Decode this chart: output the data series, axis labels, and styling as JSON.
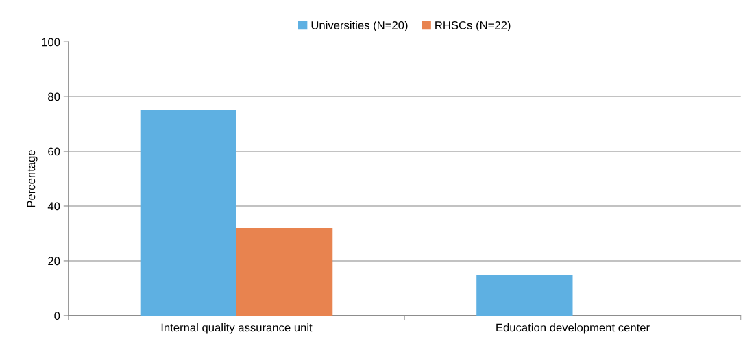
{
  "chart_data": {
    "type": "bar",
    "ylabel": "Percentage",
    "categories": [
      "Internal quality assurance unit",
      "Education development center"
    ],
    "series": [
      {
        "name": "Universities (N=20)",
        "color": "#5eb0e2",
        "values": [
          75,
          15
        ]
      },
      {
        "name": "RHSCs (N=22)",
        "color": "#e8834f",
        "values": [
          32,
          0
        ]
      }
    ],
    "ylim": [
      0,
      100
    ],
    "yticks": [
      0,
      20,
      40,
      60,
      80,
      100
    ],
    "grid": "y",
    "legend": "top"
  }
}
